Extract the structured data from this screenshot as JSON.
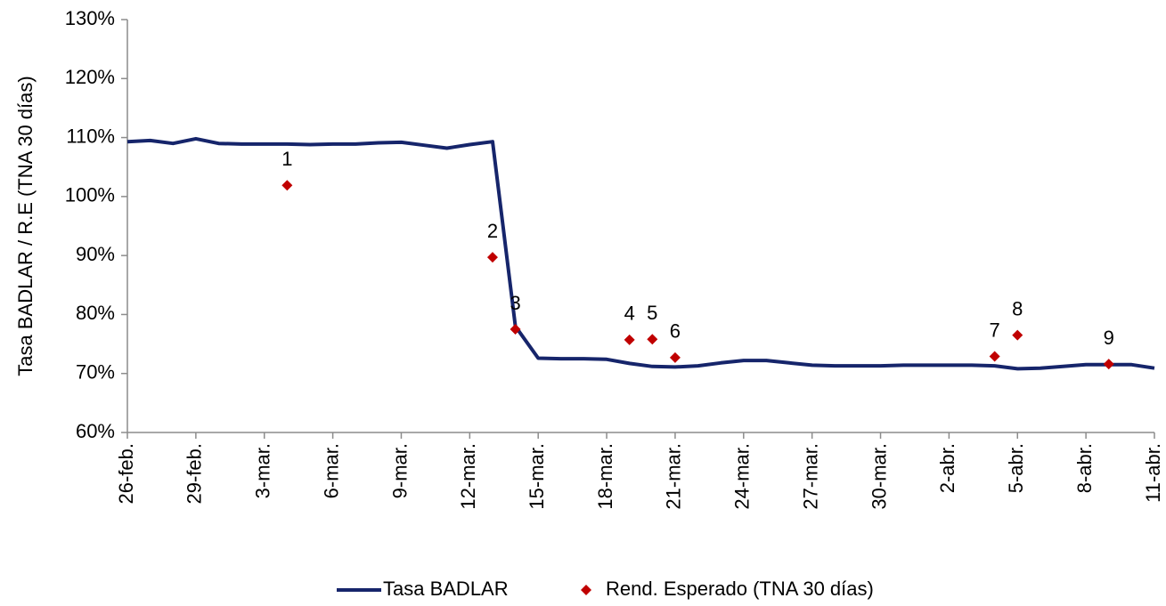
{
  "chart_data": {
    "type": "line",
    "y_label": "Tasa BADLAR / R.E (TNA 30 días)",
    "categories": [
      "26-feb.",
      null,
      null,
      "29-feb.",
      null,
      null,
      "3-mar.",
      null,
      null,
      "6-mar.",
      null,
      null,
      "9-mar.",
      null,
      null,
      "12-mar.",
      null,
      null,
      "15-mar.",
      null,
      null,
      "18-mar.",
      null,
      null,
      "21-mar.",
      null,
      null,
      "24-mar.",
      null,
      null,
      "27-mar.",
      null,
      null,
      "30-mar.",
      null,
      null,
      "2-abr.",
      null,
      null,
      "5-abr.",
      null,
      null,
      "8-abr.",
      null,
      null,
      "11-abr."
    ],
    "series": [
      {
        "name": "Tasa BADLAR",
        "type": "line",
        "color": "#16256b",
        "values": [
          109.3,
          109.5,
          109.0,
          109.8,
          109.0,
          108.9,
          108.9,
          108.9,
          108.8,
          108.9,
          108.9,
          109.1,
          109.2,
          108.7,
          108.2,
          108.8,
          109.3,
          78.0,
          72.6,
          72.5,
          72.5,
          72.4,
          71.7,
          71.2,
          71.1,
          71.3,
          71.8,
          72.2,
          72.2,
          71.8,
          71.4,
          71.3,
          71.3,
          71.3,
          71.4,
          71.4,
          71.4,
          71.4,
          71.3,
          70.8,
          70.9,
          71.2,
          71.5,
          71.5,
          71.5,
          70.9
        ]
      },
      {
        "name": "Rend. Esperado (TNA 30 días)",
        "type": "scatter",
        "color": "#c00000",
        "values": [
          null,
          null,
          null,
          null,
          null,
          null,
          null,
          101.9,
          null,
          null,
          null,
          null,
          null,
          null,
          null,
          null,
          89.7,
          77.5,
          null,
          null,
          null,
          null,
          75.7,
          75.8,
          72.7,
          null,
          null,
          null,
          null,
          null,
          null,
          null,
          null,
          null,
          null,
          null,
          null,
          null,
          72.9,
          76.5,
          null,
          null,
          null,
          71.6,
          null,
          null
        ],
        "point_labels": [
          null,
          null,
          null,
          null,
          null,
          null,
          null,
          "1",
          null,
          null,
          null,
          null,
          null,
          null,
          null,
          null,
          "2",
          "3",
          null,
          null,
          null,
          null,
          "4",
          "5",
          "6",
          null,
          null,
          null,
          null,
          null,
          null,
          null,
          null,
          null,
          null,
          null,
          null,
          null,
          "7",
          "8",
          null,
          null,
          null,
          "9",
          null,
          null
        ]
      }
    ],
    "ylim": [
      60,
      130
    ],
    "yticks": [
      {
        "value": 60,
        "label": "60%"
      },
      {
        "value": 70,
        "label": "70%"
      },
      {
        "value": 80,
        "label": "80%"
      },
      {
        "value": 90,
        "label": "90%"
      },
      {
        "value": 100,
        "label": "100%"
      },
      {
        "value": 110,
        "label": "110%"
      },
      {
        "value": 120,
        "label": "120%"
      },
      {
        "value": 130,
        "label": "130%"
      }
    ],
    "grid": false,
    "legend": "bottom"
  }
}
